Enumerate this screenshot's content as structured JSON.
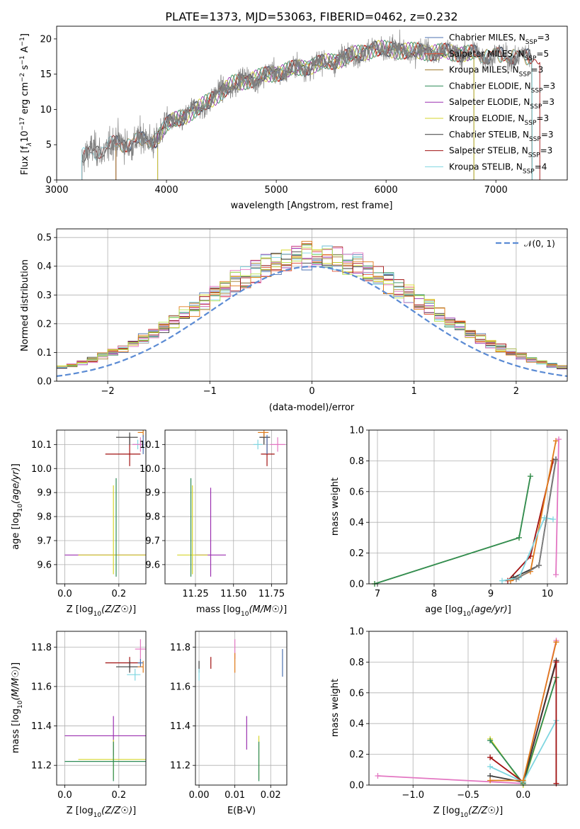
{
  "colors": {
    "chabrier_miles": "#4c72b0",
    "salpeter_miles": "#e1553a",
    "kroupa_miles": "#a07a2c",
    "chabrier_elodie": "#2e8b57",
    "salpeter_elodie": "#9b30b0",
    "kroupa_elodie": "#d6d62b",
    "chabrier_stelib": "#3a3a3a",
    "salpeter_stelib": "#a01010",
    "kroupa_stelib": "#7fd6e0",
    "normal_curve": "#5b8bd4",
    "pink": "#e377c2",
    "orange": "#e07b1a",
    "lime": "#b5e34b",
    "gray": "#7f7f7f",
    "grid": "#b0b0b0"
  },
  "chart_data": [
    {
      "id": "spectrum",
      "type": "line",
      "title": "PLATE=1373, MJD=53063, FIBERID=0462, z=0.232",
      "xlabel": "wavelength [Angstrom, rest frame]",
      "ylabel_parts": [
        "Flux [f",
        "λ",
        "10",
        "−17",
        " erg cm",
        "−2",
        " s",
        "−1",
        " A",
        "−1",
        "]"
      ],
      "xlim": [
        3000,
        7650
      ],
      "ylim": [
        0,
        21.8
      ],
      "xticks": [
        "3000",
        "4000",
        "5000",
        "6000",
        "7000"
      ],
      "yticks": [
        "0",
        "5",
        "10",
        "15",
        "20"
      ],
      "legend": [
        {
          "prefix": "Chabrier MILES, N",
          "sub": "SSP",
          "suffix": "=3"
        },
        {
          "prefix": "Salpeter MILES, N",
          "sub": "SSP",
          "suffix": "=5"
        },
        {
          "prefix": "Kroupa MILES, N",
          "sub": "SSP",
          "suffix": "=3"
        },
        {
          "prefix": "Chabrier ELODIE, N",
          "sub": "SSP",
          "suffix": "=3"
        },
        {
          "prefix": "Salpeter ELODIE, N",
          "sub": "SSP",
          "suffix": "=3"
        },
        {
          "prefix": "Kroupa ELODIE, N",
          "sub": "SSP",
          "suffix": "=3"
        },
        {
          "prefix": "Chabrier STELIB, N",
          "sub": "SSP",
          "suffix": "=3"
        },
        {
          "prefix": "Salpeter STELIB, N",
          "sub": "SSP",
          "suffix": "=3"
        },
        {
          "prefix": "Kroupa STELIB, N",
          "sub": "SSP",
          "suffix": "=4"
        }
      ],
      "legend_position": "upper right",
      "data_range": [
        3230,
        7330
      ],
      "continuum": [
        [
          3230,
          3.2
        ],
        [
          3500,
          5.0
        ],
        [
          3900,
          5.8
        ],
        [
          4000,
          7.8
        ],
        [
          4300,
          10.2
        ],
        [
          4600,
          13.6
        ],
        [
          5000,
          15.2
        ],
        [
          5500,
          16.8
        ],
        [
          5900,
          18.6
        ],
        [
          6300,
          18.2
        ],
        [
          6700,
          18.0
        ],
        [
          7000,
          17.6
        ],
        [
          7330,
          17.4
        ]
      ],
      "model_cuts": {
        "chabrier_miles": [
          3540,
          7330
        ],
        "salpeter_miles": [
          3540,
          7330
        ],
        "kroupa_miles": [
          3540,
          7330
        ],
        "salpeter_elodie": [
          3920,
          6800
        ],
        "kroupa_elodie": [
          3920,
          6800
        ],
        "chabrier_elodie": [
          3920,
          6800
        ],
        "salpeter_stelib": [
          3230,
          7400
        ]
      }
    },
    {
      "id": "residuals",
      "type": "histogram",
      "xlabel": "(data-model)/error",
      "ylabel": "Normed distribution",
      "xlim": [
        -2.5,
        2.5
      ],
      "ylim": [
        0,
        0.53
      ],
      "xticks": [
        "−2",
        "−1",
        "0",
        "1",
        "2"
      ],
      "yticks": [
        "0.0",
        "0.1",
        "0.2",
        "0.3",
        "0.4",
        "0.5"
      ],
      "bin_width": 0.1,
      "legend": "𝒩(0, 1)",
      "legend_position": "upper right"
    },
    {
      "id": "age_vs_Z",
      "type": "errorbar",
      "xlabel": "Z [log10(Z/Z☉)]",
      "ylabel": "age  [log10(age/yr)]",
      "xlim": [
        -0.03,
        0.3
      ],
      "ylim": [
        9.52,
        10.16
      ],
      "xticks": [
        "0.0",
        "0.2"
      ],
      "yticks": [
        "9.6",
        "9.7",
        "9.8",
        "9.9",
        "10.0",
        "10.1"
      ],
      "points": [
        {
          "c": "salpeter_elodie",
          "x": 0.19,
          "xerr": [
            0.19,
            0.11
          ],
          "y": 9.64,
          "yerr": [
            0,
            0
          ]
        },
        {
          "c": "kroupa_elodie",
          "x": 0.18,
          "xerr": [
            0.13,
            0.12
          ],
          "y": 9.64,
          "yerr": [
            0.08,
            0.29
          ]
        },
        {
          "c": "chabrier_elodie",
          "x": 0.19,
          "xerr": [
            0,
            0
          ],
          "y": 9.64,
          "yerr": [
            0.09,
            0.32
          ]
        },
        {
          "c": "salpeter_stelib",
          "x": 0.24,
          "xerr": [
            0.09,
            0.04
          ],
          "y": 10.06,
          "yerr": [
            0.05,
            0.07
          ]
        },
        {
          "c": "chabrier_stelib",
          "x": 0.24,
          "xerr": [
            0.05,
            0.03
          ],
          "y": 10.13,
          "yerr": [
            0.03,
            0.02
          ]
        },
        {
          "c": "kroupa_stelib",
          "x": 0.27,
          "xerr": [
            0.02,
            0.02
          ],
          "y": 10.1,
          "yerr": [
            0.02,
            0.02
          ]
        },
        {
          "c": "pink",
          "x": 0.28,
          "xerr": [
            0.03,
            0.01
          ],
          "y": 10.1,
          "yerr": [
            0.03,
            0.03
          ]
        },
        {
          "c": "orange",
          "x": 0.29,
          "xerr": [
            0.02,
            0.0
          ],
          "y": 10.15,
          "yerr": [
            0.02,
            0.01
          ]
        },
        {
          "c": "chabrier_miles",
          "x": 0.29,
          "xerr": [
            0.0,
            0.0
          ],
          "y": 10.1,
          "yerr": [
            0.04,
            0.04
          ]
        }
      ]
    },
    {
      "id": "age_vs_mass",
      "type": "errorbar",
      "xlabel": "mass [log10(M/M☉)]",
      "ylabel": "",
      "xlim": [
        11.05,
        11.85
      ],
      "ylim": [
        9.52,
        10.16
      ],
      "xticks": [
        "11.25",
        "11.50",
        "11.75"
      ],
      "yticks": [
        "9.6",
        "9.7",
        "9.8",
        "9.9",
        "10.0",
        "10.1"
      ],
      "points": [
        {
          "c": "salpeter_elodie",
          "x": 11.35,
          "xerr": [
            0.1,
            0.1
          ],
          "y": 9.64,
          "yerr": [
            0.09,
            0.28
          ]
        },
        {
          "c": "kroupa_elodie",
          "x": 11.23,
          "xerr": [
            0.1,
            0.1
          ],
          "y": 9.64,
          "yerr": [
            0.08,
            0.29
          ]
        },
        {
          "c": "chabrier_elodie",
          "x": 11.22,
          "xerr": [
            0,
            0
          ],
          "y": 9.64,
          "yerr": [
            0.09,
            0.32
          ]
        },
        {
          "c": "salpeter_stelib",
          "x": 11.72,
          "xerr": [
            0.04,
            0.05
          ],
          "y": 10.06,
          "yerr": [
            0.05,
            0.07
          ]
        },
        {
          "c": "chabrier_stelib",
          "x": 11.7,
          "xerr": [
            0.03,
            0.04
          ],
          "y": 10.13,
          "yerr": [
            0.03,
            0.02
          ]
        },
        {
          "c": "kroupa_stelib",
          "x": 11.66,
          "xerr": [
            0.03,
            0.03
          ],
          "y": 10.1,
          "yerr": [
            0.02,
            0.02
          ]
        },
        {
          "c": "pink",
          "x": 11.79,
          "xerr": [
            0.05,
            0.05
          ],
          "y": 10.1,
          "yerr": [
            0.03,
            0.03
          ]
        },
        {
          "c": "orange",
          "x": 11.7,
          "xerr": [
            0.04,
            0.03
          ],
          "y": 10.15,
          "yerr": [
            0.02,
            0.01
          ]
        },
        {
          "c": "chabrier_miles",
          "x": 11.72,
          "xerr": [
            0.0,
            0.0
          ],
          "y": 10.1,
          "yerr": [
            0.04,
            0.04
          ]
        }
      ]
    },
    {
      "id": "weight_vs_age",
      "type": "line",
      "xlabel": "age  [log10(age/yr)]",
      "ylabel": "mass weight",
      "xlim": [
        6.85,
        10.35
      ],
      "ylim": [
        0,
        1
      ],
      "xticks": [
        "7",
        "8",
        "9",
        "10"
      ],
      "yticks": [
        "0.0",
        "0.2",
        "0.4",
        "0.6",
        "0.8",
        "1.0"
      ],
      "series": [
        {
          "c": "kroupa_elodie",
          "x": [
            6.95,
            9.5,
            9.7
          ],
          "y": [
            0.0,
            0.3,
            0.7
          ]
        },
        {
          "c": "chabrier_elodie",
          "x": [
            6.95,
            9.5,
            9.7
          ],
          "y": [
            0.0,
            0.3,
            0.7
          ]
        },
        {
          "c": "salpeter_stelib",
          "x": [
            9.3,
            9.7,
            10.1
          ],
          "y": [
            0.02,
            0.18,
            0.8
          ]
        },
        {
          "c": "chabrier_stelib",
          "x": [
            9.4,
            9.85,
            10.15
          ],
          "y": [
            0.04,
            0.12,
            0.81
          ]
        },
        {
          "c": "orange",
          "x": [
            9.35,
            9.7,
            10.15
          ],
          "y": [
            0.02,
            0.08,
            0.93
          ]
        },
        {
          "c": "kroupa_stelib",
          "x": [
            9.2,
            9.5,
            9.95,
            10.1
          ],
          "y": [
            0.02,
            0.04,
            0.43,
            0.42
          ]
        },
        {
          "c": "pink",
          "x": [
            10.15,
            10.2
          ],
          "y": [
            0.06,
            0.94
          ]
        },
        {
          "c": "gray",
          "x": [
            9.45,
            9.85,
            10.15
          ],
          "y": [
            0.03,
            0.12,
            0.8
          ]
        }
      ]
    },
    {
      "id": "mass_vs_Z",
      "type": "errorbar",
      "xlabel": "Z [log10(Z/Z☉)]",
      "ylabel": "mass [log10(M/M☉)]",
      "xlim": [
        -0.03,
        0.3
      ],
      "ylim": [
        11.1,
        11.88
      ],
      "xticks": [
        "0.0",
        "0.2"
      ],
      "yticks": [
        "11.2",
        "11.4",
        "11.6",
        "11.8"
      ],
      "points": [
        {
          "c": "salpeter_elodie",
          "x": 0.18,
          "xerr": [
            0.18,
            0.12
          ],
          "y": 11.35,
          "yerr": [
            0.1,
            0.1
          ]
        },
        {
          "c": "kroupa_elodie",
          "x": 0.18,
          "xerr": [
            0.13,
            0.12
          ],
          "y": 11.23,
          "yerr": [
            0.1,
            0.1
          ]
        },
        {
          "c": "chabrier_elodie",
          "x": 0.18,
          "xerr": [
            0.18,
            0.12
          ],
          "y": 11.22,
          "yerr": [
            0.1,
            0.1
          ]
        },
        {
          "c": "salpeter_stelib",
          "x": 0.24,
          "xerr": [
            0.09,
            0.04
          ],
          "y": 11.72,
          "yerr": [
            0.03,
            0.03
          ]
        },
        {
          "c": "chabrier_stelib",
          "x": 0.24,
          "xerr": [
            0.05,
            0.03
          ],
          "y": 11.7,
          "yerr": [
            0.03,
            0.03
          ]
        },
        {
          "c": "kroupa_stelib",
          "x": 0.26,
          "xerr": [
            0.03,
            0.02
          ],
          "y": 11.66,
          "yerr": [
            0.03,
            0.03
          ]
        },
        {
          "c": "pink",
          "x": 0.28,
          "xerr": [
            0.02,
            0.02
          ],
          "y": 11.79,
          "yerr": [
            0.05,
            0.05
          ]
        },
        {
          "c": "orange",
          "x": 0.29,
          "xerr": [
            0.02,
            0.0
          ],
          "y": 11.7,
          "yerr": [
            0.03,
            0.03
          ]
        },
        {
          "c": "chabrier_miles",
          "x": 0.28,
          "xerr": [
            0.01,
            0.01
          ],
          "y": 11.72,
          "yerr": [
            0.02,
            0.02
          ]
        }
      ]
    },
    {
      "id": "mass_vs_ebv",
      "type": "errorbar",
      "xlabel": "E(B-V)",
      "ylabel": "",
      "xlim": [
        -0.001,
        0.0245
      ],
      "ylim": [
        11.1,
        11.88
      ],
      "xticks": [
        "0.00",
        "0.01",
        "0.02"
      ],
      "yticks": [
        "11.2",
        "11.4",
        "11.6",
        "11.8"
      ],
      "points": [
        {
          "c": "chabrier_stelib",
          "x": 0.0,
          "xerr": [
            0,
            0
          ],
          "y": 11.7,
          "yerr": [
            0.03,
            0.03
          ]
        },
        {
          "c": "kroupa_stelib",
          "x": 0.0,
          "xerr": [
            0,
            0
          ],
          "y": 11.66,
          "yerr": [
            0.03,
            0.03
          ]
        },
        {
          "c": "salpeter_stelib",
          "x": 0.0033,
          "xerr": [
            0,
            0
          ],
          "y": 11.72,
          "yerr": [
            0.03,
            0.03
          ]
        },
        {
          "c": "pink",
          "x": 0.01,
          "xerr": [
            0,
            0
          ],
          "y": 11.79,
          "yerr": [
            0.05,
            0.05
          ]
        },
        {
          "c": "orange",
          "x": 0.01,
          "xerr": [
            0,
            0
          ],
          "y": 11.7,
          "yerr": [
            0.03,
            0.07
          ]
        },
        {
          "c": "salpeter_elodie",
          "x": 0.0133,
          "xerr": [
            0,
            0
          ],
          "y": 11.35,
          "yerr": [
            0.07,
            0.1
          ]
        },
        {
          "c": "kroupa_elodie",
          "x": 0.0167,
          "xerr": [
            0,
            0
          ],
          "y": 11.23,
          "yerr": [
            0.1,
            0.12
          ]
        },
        {
          "c": "chabrier_elodie",
          "x": 0.0167,
          "xerr": [
            0,
            0
          ],
          "y": 11.22,
          "yerr": [
            0.1,
            0.1
          ]
        },
        {
          "c": "chabrier_miles",
          "x": 0.0233,
          "xerr": [
            0,
            0
          ],
          "y": 11.72,
          "yerr": [
            0.07,
            0.07
          ]
        }
      ]
    },
    {
      "id": "weight_vs_Z",
      "type": "line",
      "xlabel": "Z [log10(Z/Z☉)]",
      "ylabel": "mass weight",
      "xlim": [
        -1.4,
        0.4
      ],
      "ylim": [
        0,
        1
      ],
      "xticks": [
        "−1.0",
        "−0.5",
        "0.0"
      ],
      "yticks": [
        "0.0",
        "0.2",
        "0.4",
        "0.6",
        "0.8",
        "1.0"
      ],
      "series": [
        {
          "c": "pink",
          "x": [
            -1.32,
            0.0,
            0.3
          ],
          "y": [
            0.06,
            0.01,
            0.94
          ]
        },
        {
          "c": "kroupa_elodie",
          "x": [
            -0.3,
            0.0,
            0.3
          ],
          "y": [
            0.3,
            0.0,
            0.7
          ]
        },
        {
          "c": "chabrier_elodie",
          "x": [
            -0.3,
            0.0,
            0.3
          ],
          "y": [
            0.29,
            0.01,
            0.7
          ]
        },
        {
          "c": "salpeter_stelib",
          "x": [
            -0.3,
            0.0,
            0.3
          ],
          "y": [
            0.18,
            0.02,
            0.8
          ]
        },
        {
          "c": "chabrier_stelib",
          "x": [
            -0.3,
            0.0,
            0.3
          ],
          "y": [
            0.06,
            0.02,
            0.81
          ]
        },
        {
          "c": "kroupa_stelib",
          "x": [
            -0.3,
            0.0,
            0.3
          ],
          "y": [
            0.12,
            0.02,
            0.42
          ]
        },
        {
          "c": "orange",
          "x": [
            -0.3,
            0.0,
            0.3
          ],
          "y": [
            0.03,
            0.03,
            0.93
          ]
        },
        {
          "c": "salpeter_stelib",
          "x": [
            0.3,
            0.3
          ],
          "y": [
            0.01,
            0.8
          ]
        }
      ]
    }
  ]
}
